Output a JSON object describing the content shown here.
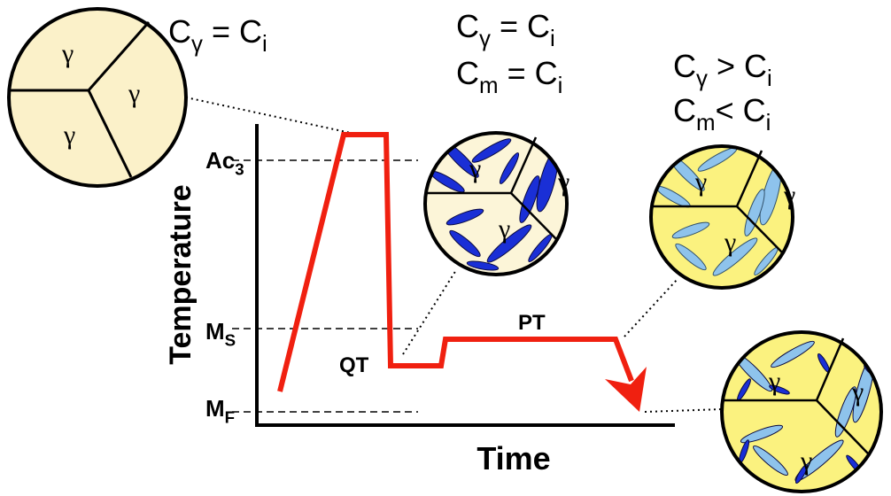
{
  "axes": {
    "y_label": "Temperature",
    "x_label": "Time"
  },
  "levels": [
    [
      "Ac",
      "3"
    ],
    [
      "M",
      "S"
    ],
    [
      "M",
      "F"
    ]
  ],
  "stages": {
    "quench": "QT",
    "partition": "PT"
  },
  "circles": [
    {
      "equations": [
        [
          "C",
          "γ",
          " = C",
          "i"
        ]
      ],
      "grains": [
        "γ",
        "γ",
        "γ"
      ]
    },
    {
      "equations": [
        [
          "C",
          "γ",
          " = C",
          "i"
        ],
        [
          "C",
          "m",
          " = C",
          "i"
        ]
      ],
      "grains": [
        "γ",
        "γ",
        "γ"
      ]
    },
    {
      "equations": [
        [
          "C",
          "γ",
          " > C",
          "i"
        ],
        [
          "C",
          "m",
          "< C",
          "i"
        ]
      ],
      "grains": [
        "γ",
        "γ",
        "γ"
      ]
    },
    {
      "equations": [],
      "grains": [
        "γ",
        "γ",
        "γ"
      ]
    }
  ]
}
